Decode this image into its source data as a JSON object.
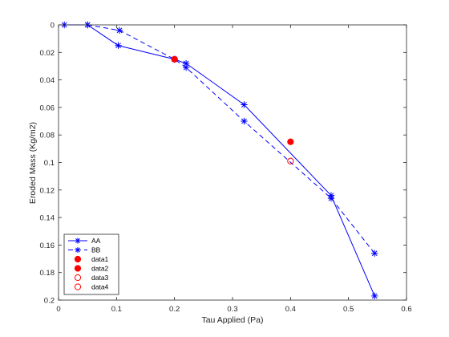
{
  "chart_data": {
    "type": "line",
    "title": "",
    "xlabel": "Tau Applied  (Pa)",
    "ylabel": "Eroded Mass  (Kg/m2)",
    "xlim": [
      0,
      0.6
    ],
    "ylim": [
      0,
      0.2
    ],
    "y_reversed": true,
    "grid": false,
    "x_ticks": [
      "0",
      "0.1",
      "0.2",
      "0.3",
      "0.4",
      "0.5",
      "0.6"
    ],
    "y_ticks": [
      "0",
      "0.02",
      "0.04",
      "0.06",
      "0.08",
      "0.1",
      "0.12",
      "0.14",
      "0.16",
      "0.18",
      "0.2"
    ],
    "legend_position": "bottom-left",
    "series": [
      {
        "name": "AA",
        "style": "solid-line-star",
        "color": "#0000ff",
        "x": [
          0.01,
          0.05,
          0.103,
          0.2,
          0.22,
          0.32,
          0.47,
          0.545
        ],
        "y": [
          0,
          0,
          0.015,
          0.025,
          0.028,
          0.058,
          0.124,
          0.197
        ]
      },
      {
        "name": "BB",
        "style": "dashed-line-star",
        "color": "#0000ff",
        "x": [
          0.05,
          0.105,
          0.2,
          0.22,
          0.32,
          0.47,
          0.545
        ],
        "y": [
          0,
          0.004,
          0.025,
          0.031,
          0.07,
          0.126,
          0.166
        ]
      },
      {
        "name": "data1",
        "style": "filled-circle",
        "color": "#ff0000",
        "x": [
          0.2
        ],
        "y": [
          0.025
        ]
      },
      {
        "name": "data2",
        "style": "filled-circle",
        "color": "#ff0000",
        "x": [
          0.4
        ],
        "y": [
          0.085
        ]
      },
      {
        "name": "data3",
        "style": "open-circle",
        "color": "#ff0000",
        "x": [],
        "y": []
      },
      {
        "name": "data4",
        "style": "open-circle",
        "color": "#ff0000",
        "x": [
          0.4
        ],
        "y": [
          0.099
        ]
      }
    ]
  }
}
